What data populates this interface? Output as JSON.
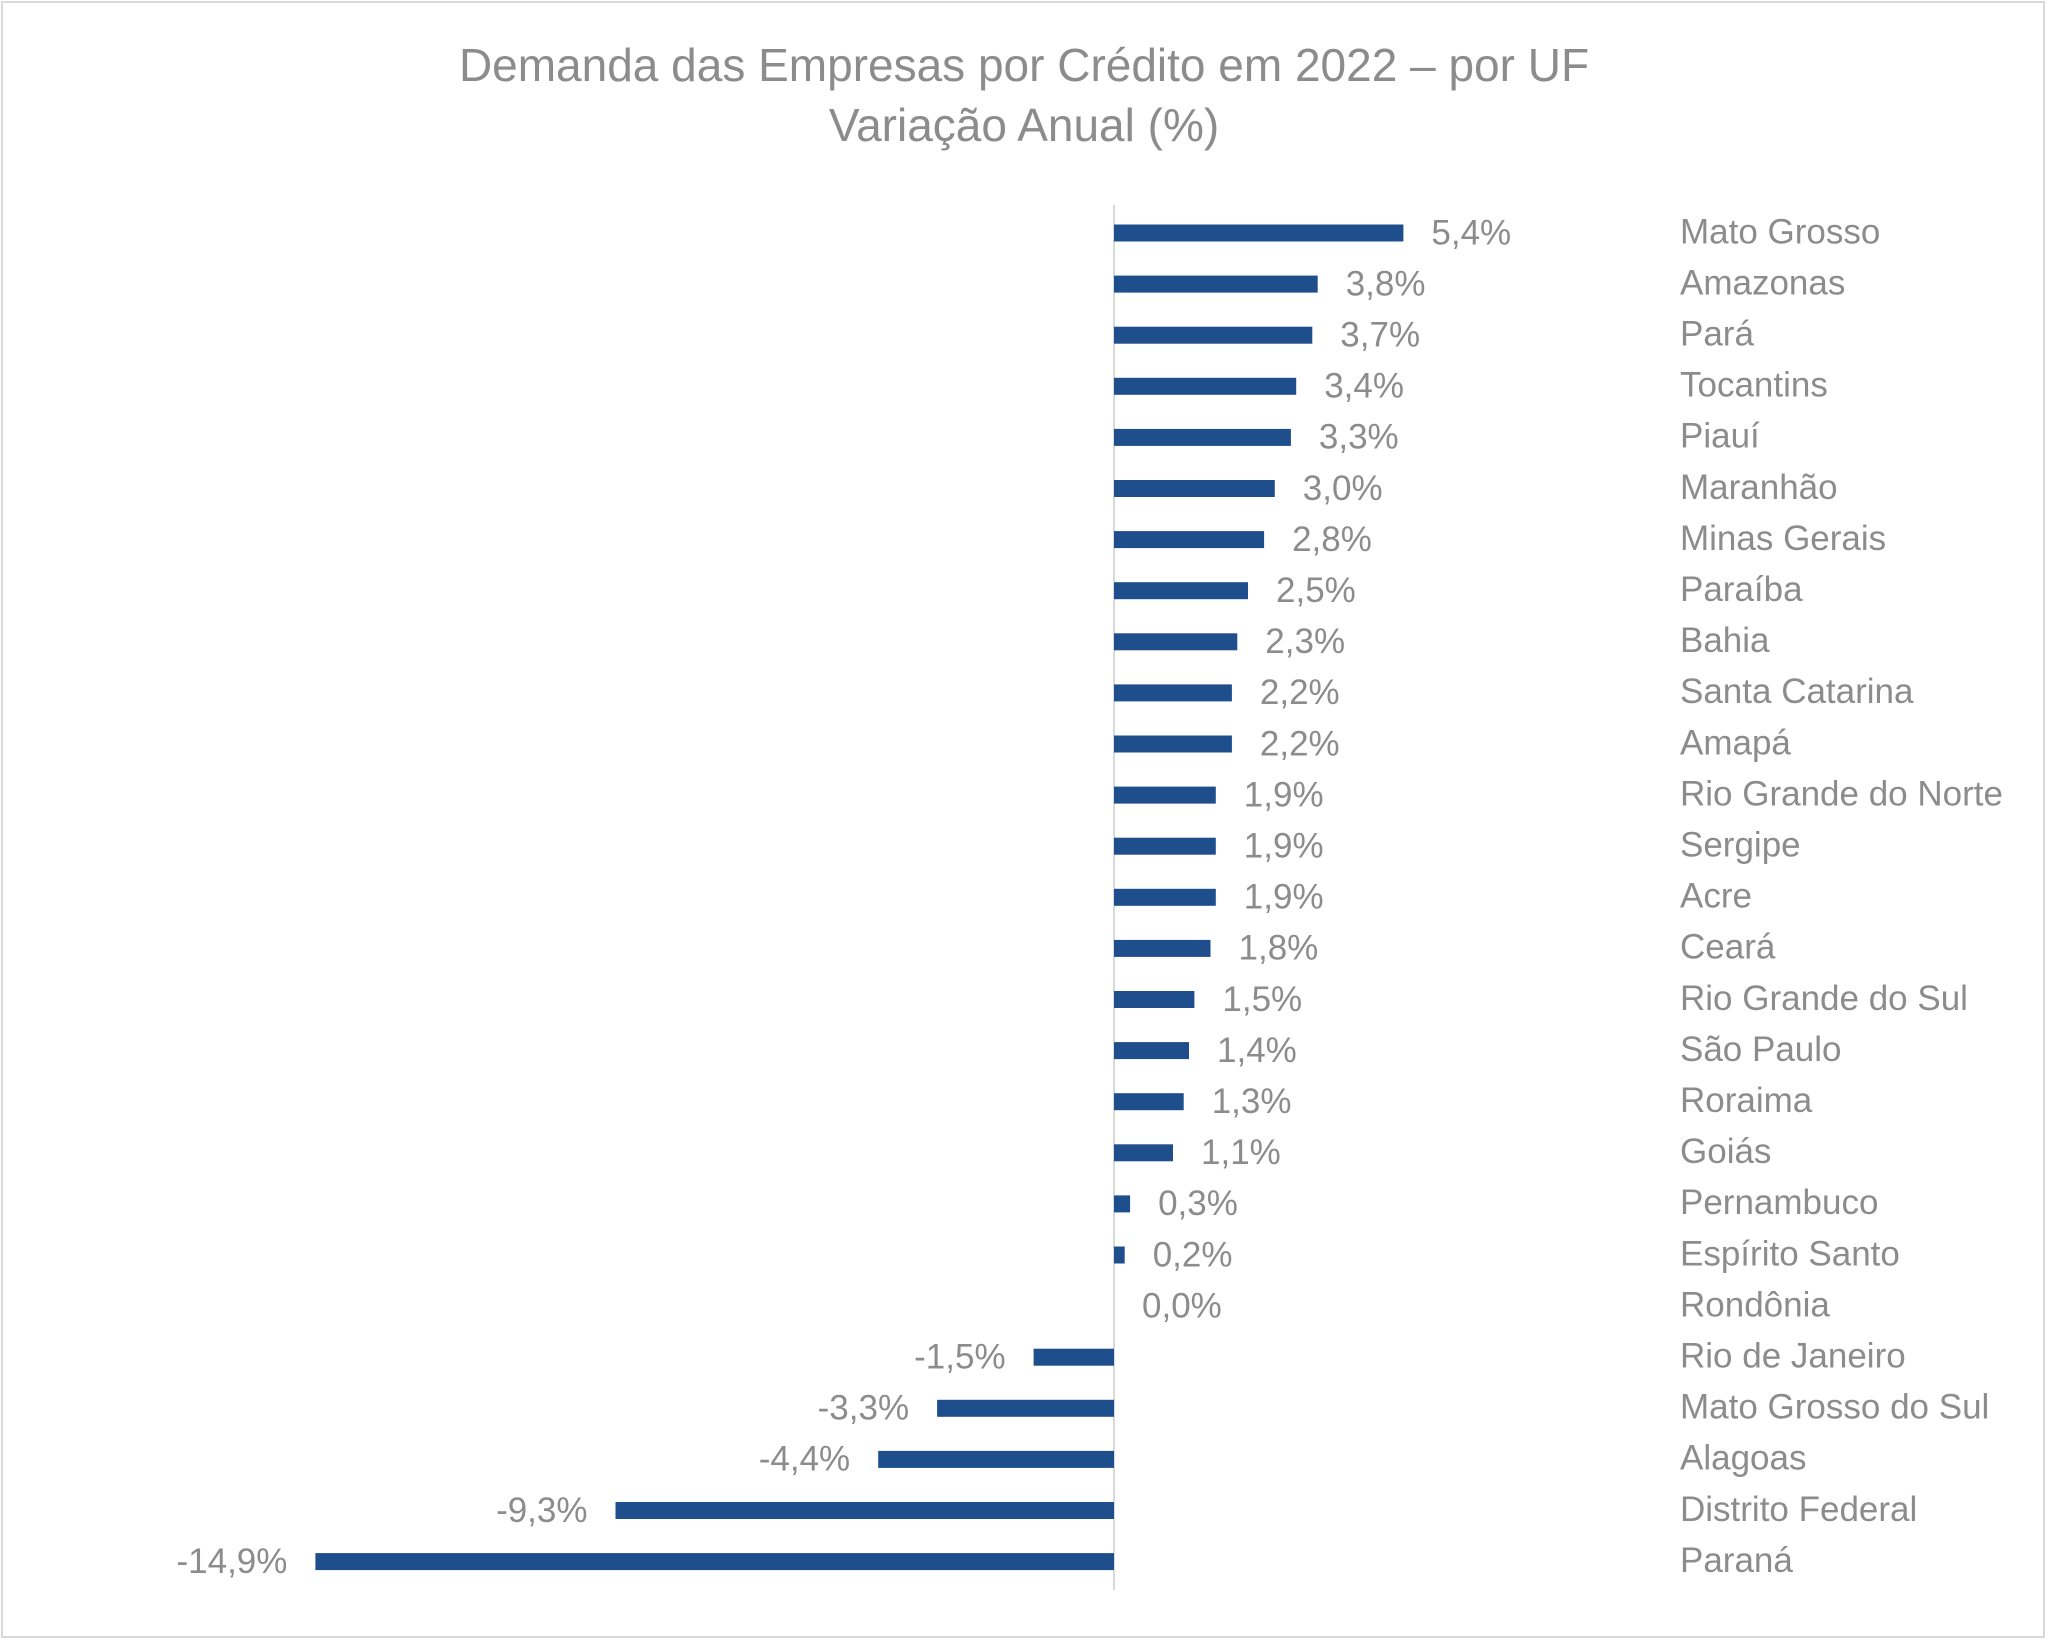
{
  "chart_data": {
    "type": "bar",
    "orientation": "horizontal",
    "title": "Demanda das Empresas por Crédito em 2022 – por UF",
    "subtitle": "Variação Anual (%)",
    "xlabel": "",
    "ylabel": "",
    "xlim": [
      -15,
      5.5
    ],
    "grid": false,
    "legend": "none",
    "color": "#1f4e8c",
    "categories": [
      "Mato Grosso",
      "Amazonas",
      "Pará",
      "Tocantins",
      "Piauí",
      "Maranhão",
      "Minas Gerais",
      "Paraíba",
      "Bahia",
      "Santa Catarina",
      "Amapá",
      "Rio Grande do Norte",
      "Sergipe",
      "Acre",
      "Ceará",
      "Rio Grande do Sul",
      "São Paulo",
      "Roraima",
      "Goiás",
      "Pernambuco",
      "Espírito Santo",
      "Rondônia",
      "Rio de Janeiro",
      "Mato Grosso do Sul",
      "Alagoas",
      "Distrito Federal",
      "Paraná"
    ],
    "values": [
      5.4,
      3.8,
      3.7,
      3.4,
      3.3,
      3.0,
      2.8,
      2.5,
      2.3,
      2.2,
      2.2,
      1.9,
      1.9,
      1.9,
      1.8,
      1.5,
      1.4,
      1.3,
      1.1,
      0.3,
      0.2,
      0.0,
      -1.5,
      -3.3,
      -4.4,
      -9.3,
      -14.9
    ],
    "data_labels": [
      "5,4%",
      "3,8%",
      "3,7%",
      "3,4%",
      "3,3%",
      "3,0%",
      "2,8%",
      "2,5%",
      "2,3%",
      "2,2%",
      "2,2%",
      "1,9%",
      "1,9%",
      "1,9%",
      "1,8%",
      "1,5%",
      "1,4%",
      "1,3%",
      "1,1%",
      "0,3%",
      "0,2%",
      "0,0%",
      "-1,5%",
      "-3,3%",
      "-4,4%",
      "-9,3%",
      "-14,9%"
    ]
  }
}
